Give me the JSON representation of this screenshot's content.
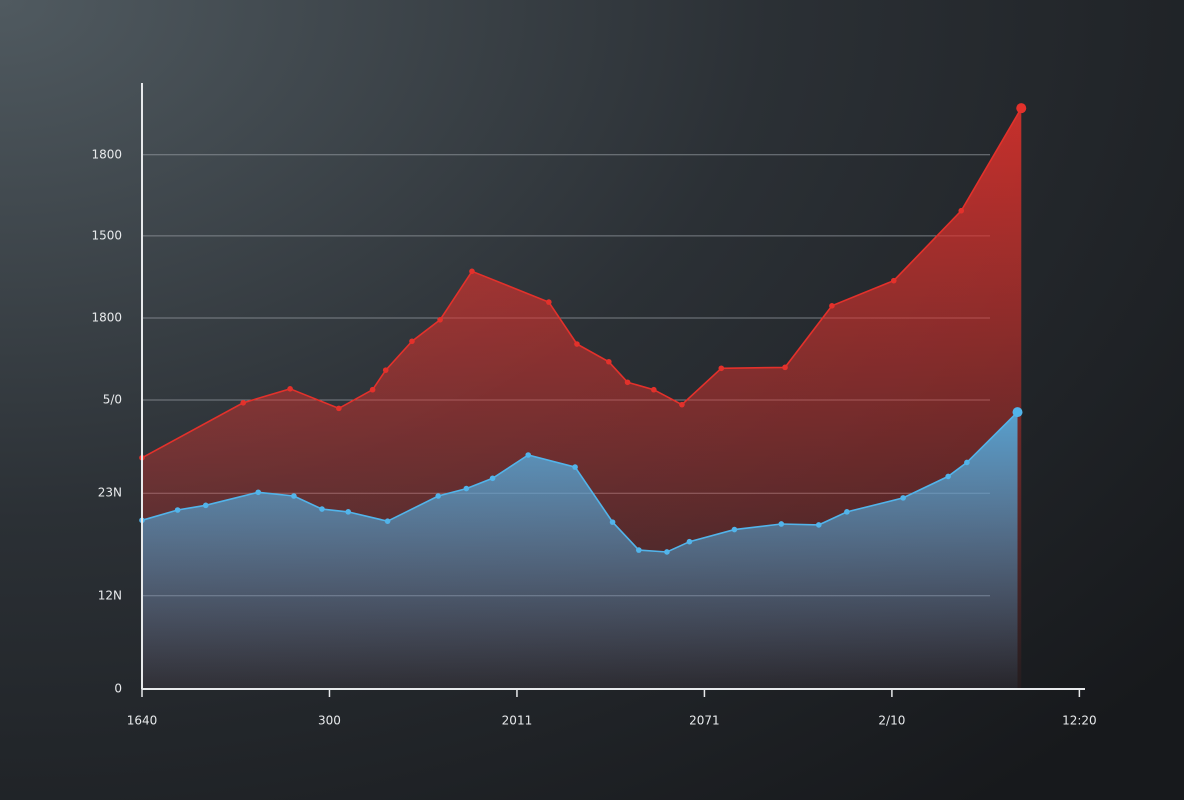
{
  "chart_data": {
    "type": "area",
    "xlim": [
      0,
      5.03
    ],
    "ylim": [
      0,
      650
    ],
    "xticks": [
      {
        "value": 0,
        "label": "1640"
      },
      {
        "value": 1,
        "label": "300"
      },
      {
        "value": 2,
        "label": "2011"
      },
      {
        "value": 3,
        "label": "2071"
      },
      {
        "value": 4,
        "label": "2/10"
      },
      {
        "value": 5,
        "label": "12:20"
      }
    ],
    "yticks": [
      0,
      {
        "value": 100,
        "label": "12N"
      },
      {
        "value": 210,
        "label": "23N"
      },
      {
        "value": 310,
        "label": "5/0"
      },
      {
        "value": 398,
        "label": "1800"
      },
      {
        "value": 486,
        "label": "1500"
      },
      {
        "value": 573,
        "label": "1800"
      }
    ],
    "grid": true,
    "series": [
      {
        "color": "#e3312b",
        "x": [
          0,
          0.54,
          0.79,
          1.05,
          1.23,
          1.3,
          1.44,
          1.59,
          1.76,
          2.17,
          2.32,
          2.49,
          2.59,
          2.73,
          2.88,
          3.09,
          3.43,
          3.68,
          4.01,
          4.37,
          4.69
        ],
        "values": [
          248,
          307,
          322,
          301,
          321,
          342,
          373,
          396,
          448,
          415,
          370,
          351,
          329,
          321,
          305,
          344,
          345,
          411,
          438,
          513,
          623
        ]
      },
      {
        "color": "#52b4ea",
        "x": [
          0,
          0.19,
          0.34,
          0.62,
          0.81,
          0.96,
          1.1,
          1.31,
          1.58,
          1.73,
          1.87,
          2.06,
          2.31,
          2.51,
          2.65,
          2.8,
          2.92,
          3.16,
          3.41,
          3.61,
          3.76,
          4.06,
          4.3,
          4.4,
          4.67
        ],
        "values": [
          181,
          192,
          197,
          211,
          207,
          193,
          190,
          180,
          207,
          215,
          226,
          251,
          238,
          179,
          149,
          147,
          158,
          171,
          177,
          176,
          190,
          205,
          228,
          243,
          297
        ]
      }
    ]
  }
}
